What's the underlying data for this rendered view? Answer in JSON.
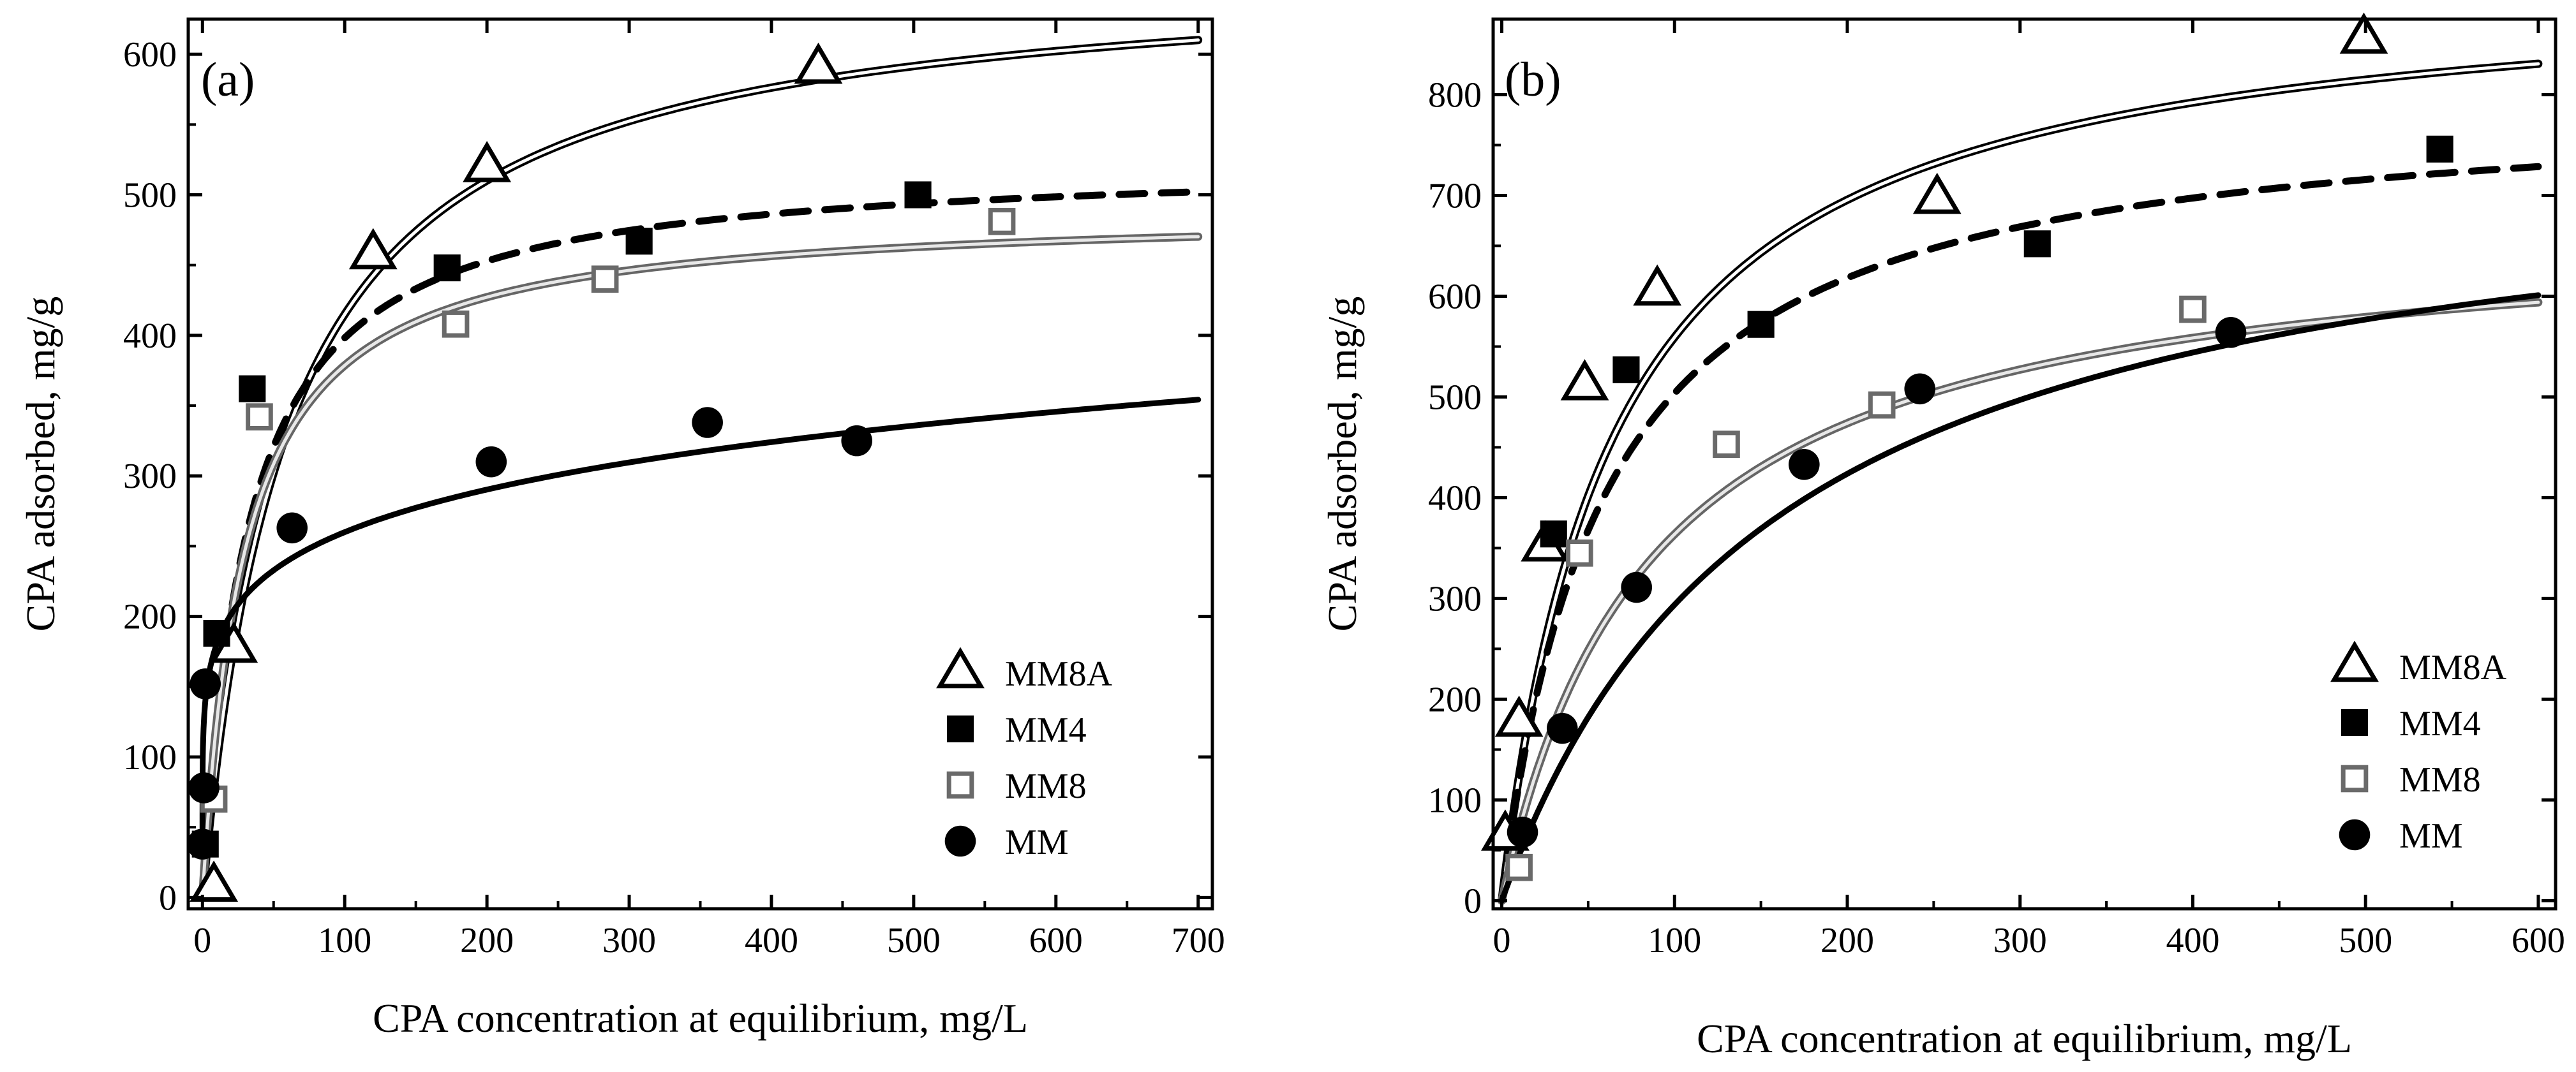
{
  "chart_data": [
    {
      "type": "scatter",
      "panel_label": "(a)",
      "xlabel": "CPA concentration at equilibrium, mg/L",
      "ylabel": "CPA adsorbed, mg/g",
      "xlim": [
        -10,
        710
      ],
      "ylim": [
        -8,
        625
      ],
      "xticks": [
        0,
        100,
        200,
        300,
        400,
        500,
        600,
        700
      ],
      "yticks": [
        0,
        100,
        200,
        300,
        400,
        500,
        600
      ],
      "legend_position": "bottom-right",
      "series": [
        {
          "name": "MM8A",
          "marker": "open-triangle",
          "points": [
            [
              8,
              8
            ],
            [
              22,
              178
            ],
            [
              120,
              458
            ],
            [
              200,
              520
            ],
            [
              433,
              590
            ]
          ],
          "fit": {
            "model": "langmuir",
            "qmax": 662,
            "K": 0.0168,
            "style": "double"
          }
        },
        {
          "name": "MM4",
          "marker": "filled-square",
          "points": [
            [
              2,
              38
            ],
            [
              10,
              188
            ],
            [
              35,
              362
            ],
            [
              172,
              448
            ],
            [
              307,
              467
            ],
            [
              503,
              500
            ]
          ],
          "fit": {
            "model": "langmuir",
            "qmax": 525,
            "K": 0.0314,
            "style": "dashed"
          }
        },
        {
          "name": "MM8",
          "marker": "open-square",
          "points": [
            [
              8,
              70
            ],
            [
              40,
              342
            ],
            [
              178,
              408
            ],
            [
              283,
              440
            ],
            [
              562,
              481
            ]
          ],
          "fit": {
            "model": "langmuir",
            "qmax": 490,
            "K": 0.034,
            "style": "double-gray"
          }
        },
        {
          "name": "MM",
          "marker": "filled-circle",
          "points": [
            [
              0,
              38
            ],
            [
              1,
              78
            ],
            [
              2,
              152
            ],
            [
              63,
              263
            ],
            [
              203,
              310
            ],
            [
              355,
              338
            ],
            [
              460,
              325
            ]
          ],
          "fit": {
            "model": "freundlich",
            "K": 125,
            "n": 0.159,
            "style": "solid"
          }
        }
      ]
    },
    {
      "type": "scatter",
      "panel_label": "(b)",
      "xlabel": "CPA concentration at equilibrium, mg/L",
      "ylabel": "CPA adsorbed, mg/g",
      "xlim": [
        -5,
        610
      ],
      "ylim": [
        -8,
        875
      ],
      "xticks": [
        0,
        100,
        200,
        300,
        400,
        500,
        600
      ],
      "yticks": [
        0,
        100,
        200,
        300,
        400,
        500,
        600,
        700,
        800
      ],
      "legend_position": "bottom-right",
      "series": [
        {
          "name": "MM8A",
          "marker": "open-triangle",
          "points": [
            [
              2,
              65
            ],
            [
              10,
              178
            ],
            [
              25,
              352
            ],
            [
              48,
              512
            ],
            [
              90,
              606
            ],
            [
              252,
              697
            ],
            [
              499,
              856
            ]
          ],
          "fit": {
            "model": "langmuir",
            "qmax": 920,
            "K": 0.0155,
            "style": "double"
          }
        },
        {
          "name": "MM4",
          "marker": "filled-square",
          "points": [
            [
              30,
              364
            ],
            [
              72,
              527
            ],
            [
              150,
              572
            ],
            [
              310,
              652
            ],
            [
              543,
              746
            ]
          ],
          "fit": {
            "model": "langmuir",
            "qmax": 800,
            "K": 0.017,
            "style": "dashed"
          }
        },
        {
          "name": "MM8",
          "marker": "open-square",
          "points": [
            [
              10,
              33
            ],
            [
              45,
              345
            ],
            [
              130,
              453
            ],
            [
              220,
              492
            ],
            [
              400,
              587
            ]
          ],
          "fit": {
            "model": "langmuir",
            "qmax": 680,
            "K": 0.0115,
            "style": "double-gray"
          }
        },
        {
          "name": "MM",
          "marker": "filled-circle",
          "points": [
            [
              12,
              68
            ],
            [
              35,
              171
            ],
            [
              78,
              311
            ],
            [
              175,
              433
            ],
            [
              242,
              508
            ],
            [
              422,
              564
            ]
          ],
          "fit": {
            "model": "langmuir",
            "qmax": 760,
            "K": 0.0063,
            "style": "solid"
          }
        }
      ]
    }
  ]
}
